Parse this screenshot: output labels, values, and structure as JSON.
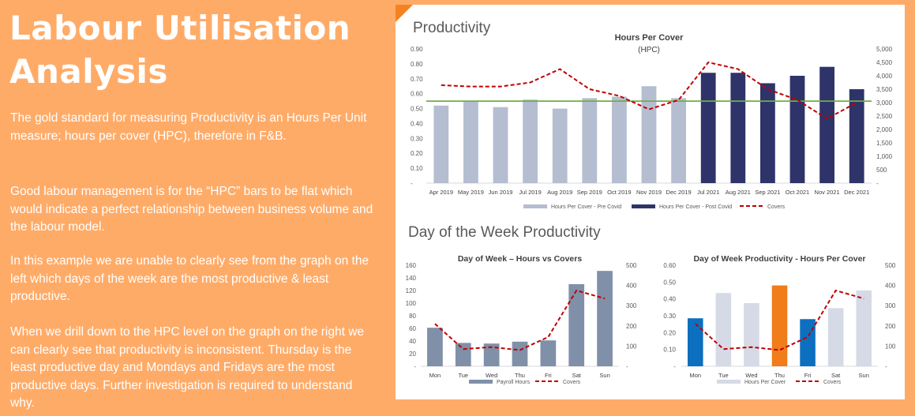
{
  "page": {
    "title_line1": "Labour Utilisation",
    "title_line2": "Analysis",
    "paragraphs": [
      "The gold standard for measuring Productivity is an Hours Per Unit measure; hours per cover (HPC), therefore in F&B.",
      "Good labour management is for the “HPC” bars to be flat which would indicate a perfect relationship between business volume and the labour model.",
      "In this example we are unable to clearly see from the graph on the left which days of the week are the most productive & least productive.",
      "When we drill down to the HPC level on the graph on the right we can clearly see that productivity is inconsistent. Thursday is the least productive day and Mondays and Fridays are the most productive days. Further investigation is required to understand why."
    ],
    "section1_heading": "Productivity",
    "section2_heading": "Day of the Week Productivity"
  },
  "colors": {
    "background": "#FFAB68",
    "accent": "#F58220",
    "pre_covid": "#B4BED0",
    "post_covid": "#2E3469",
    "covers_line": "#C00000",
    "target_line": "#70AD47",
    "payroll": "#8090A8",
    "hpc_light": "#D5DAE6",
    "hpc_blue": "#0D6FBF",
    "hpc_orange": "#F07C1A"
  },
  "chart_data": [
    {
      "type": "bar",
      "title": "Hours Per Cover",
      "subtitle": "(HPC)",
      "categories": [
        "Apr 2019",
        "May 2019",
        "Jun 2019",
        "Jul 2019",
        "Aug 2019",
        "Sep 2019",
        "Oct 2019",
        "Nov 2019",
        "Dec 2019",
        "Jul 2021",
        "Aug 2021",
        "Sep 2021",
        "Oct 2021",
        "Nov 2021",
        "Dec 2021"
      ],
      "series": [
        {
          "name": "Hours Per Cover - Pre Covid",
          "axis": "left",
          "values": [
            0.52,
            0.55,
            0.51,
            0.56,
            0.5,
            0.57,
            0.58,
            0.65,
            0.57,
            null,
            null,
            null,
            null,
            null,
            null
          ]
        },
        {
          "name": "Hours Per Cover - Post Covid",
          "axis": "left",
          "values": [
            null,
            null,
            null,
            null,
            null,
            null,
            null,
            null,
            null,
            0.74,
            0.74,
            0.67,
            0.72,
            0.78,
            0.63
          ]
        },
        {
          "name": "Covers",
          "axis": "right",
          "style": "dashed",
          "values": [
            3650,
            3600,
            3600,
            3750,
            4250,
            3500,
            3250,
            2750,
            3100,
            4500,
            4250,
            3500,
            3100,
            2400,
            3000
          ]
        }
      ],
      "reference_line": 0.55,
      "ylim": [
        0,
        0.9
      ],
      "y_ticks": [
        "0.90",
        "0.80",
        "0.70",
        "0.60",
        "0.50",
        "0.40",
        "0.30",
        "0.20",
        "0.10",
        "-"
      ],
      "y2lim": [
        0,
        5000
      ],
      "y2_ticks": [
        "5,000",
        "4,500",
        "4,000",
        "3,500",
        "3,000",
        "2,500",
        "2,000",
        "1,500",
        "1,000",
        "500",
        "-"
      ],
      "legend_position": "bottom"
    },
    {
      "type": "bar",
      "title": "Day of Week – Hours vs Covers",
      "categories": [
        "Mon",
        "Tue",
        "Wed",
        "Thu",
        "Fri",
        "Sat",
        "Sun"
      ],
      "series": [
        {
          "name": "Payroll Hours",
          "axis": "left",
          "values": [
            61,
            37,
            36,
            39,
            41,
            130,
            151
          ]
        },
        {
          "name": "Covers",
          "axis": "right",
          "style": "dashed",
          "values": [
            210,
            85,
            95,
            80,
            145,
            375,
            335
          ]
        }
      ],
      "ylim": [
        0,
        160
      ],
      "y_ticks": [
        "160",
        "140",
        "120",
        "100",
        "80",
        "60",
        "40",
        "20",
        "-"
      ],
      "y2lim": [
        0,
        500
      ],
      "y2_ticks": [
        "500",
        "400",
        "300",
        "200",
        "100",
        "-"
      ],
      "legend_position": "bottom"
    },
    {
      "type": "bar",
      "title": "Day of Week Productivity - Hours Per Cover",
      "categories": [
        "Mon",
        "Tue",
        "Wed",
        "Thu",
        "Fri",
        "Sat",
        "Sun"
      ],
      "series": [
        {
          "name": "Hours Per Cover",
          "axis": "left",
          "values": [
            0.285,
            0.435,
            0.375,
            0.48,
            0.28,
            0.345,
            0.45
          ]
        },
        {
          "name": "Covers",
          "axis": "right",
          "style": "dashed",
          "values": [
            210,
            85,
            95,
            80,
            145,
            375,
            335
          ]
        }
      ],
      "bar_colors": [
        "#0D6FBF",
        "#D5DAE6",
        "#D5DAE6",
        "#F07C1A",
        "#0D6FBF",
        "#D5DAE6",
        "#D5DAE6"
      ],
      "ylim": [
        0,
        0.6
      ],
      "y_ticks": [
        "0.60",
        "0.50",
        "0.40",
        "0.30",
        "0.20",
        "0.10",
        "-"
      ],
      "y2lim": [
        0,
        500
      ],
      "y2_ticks": [
        "500",
        "400",
        "300",
        "200",
        "100",
        "-"
      ],
      "legend_position": "bottom"
    }
  ]
}
